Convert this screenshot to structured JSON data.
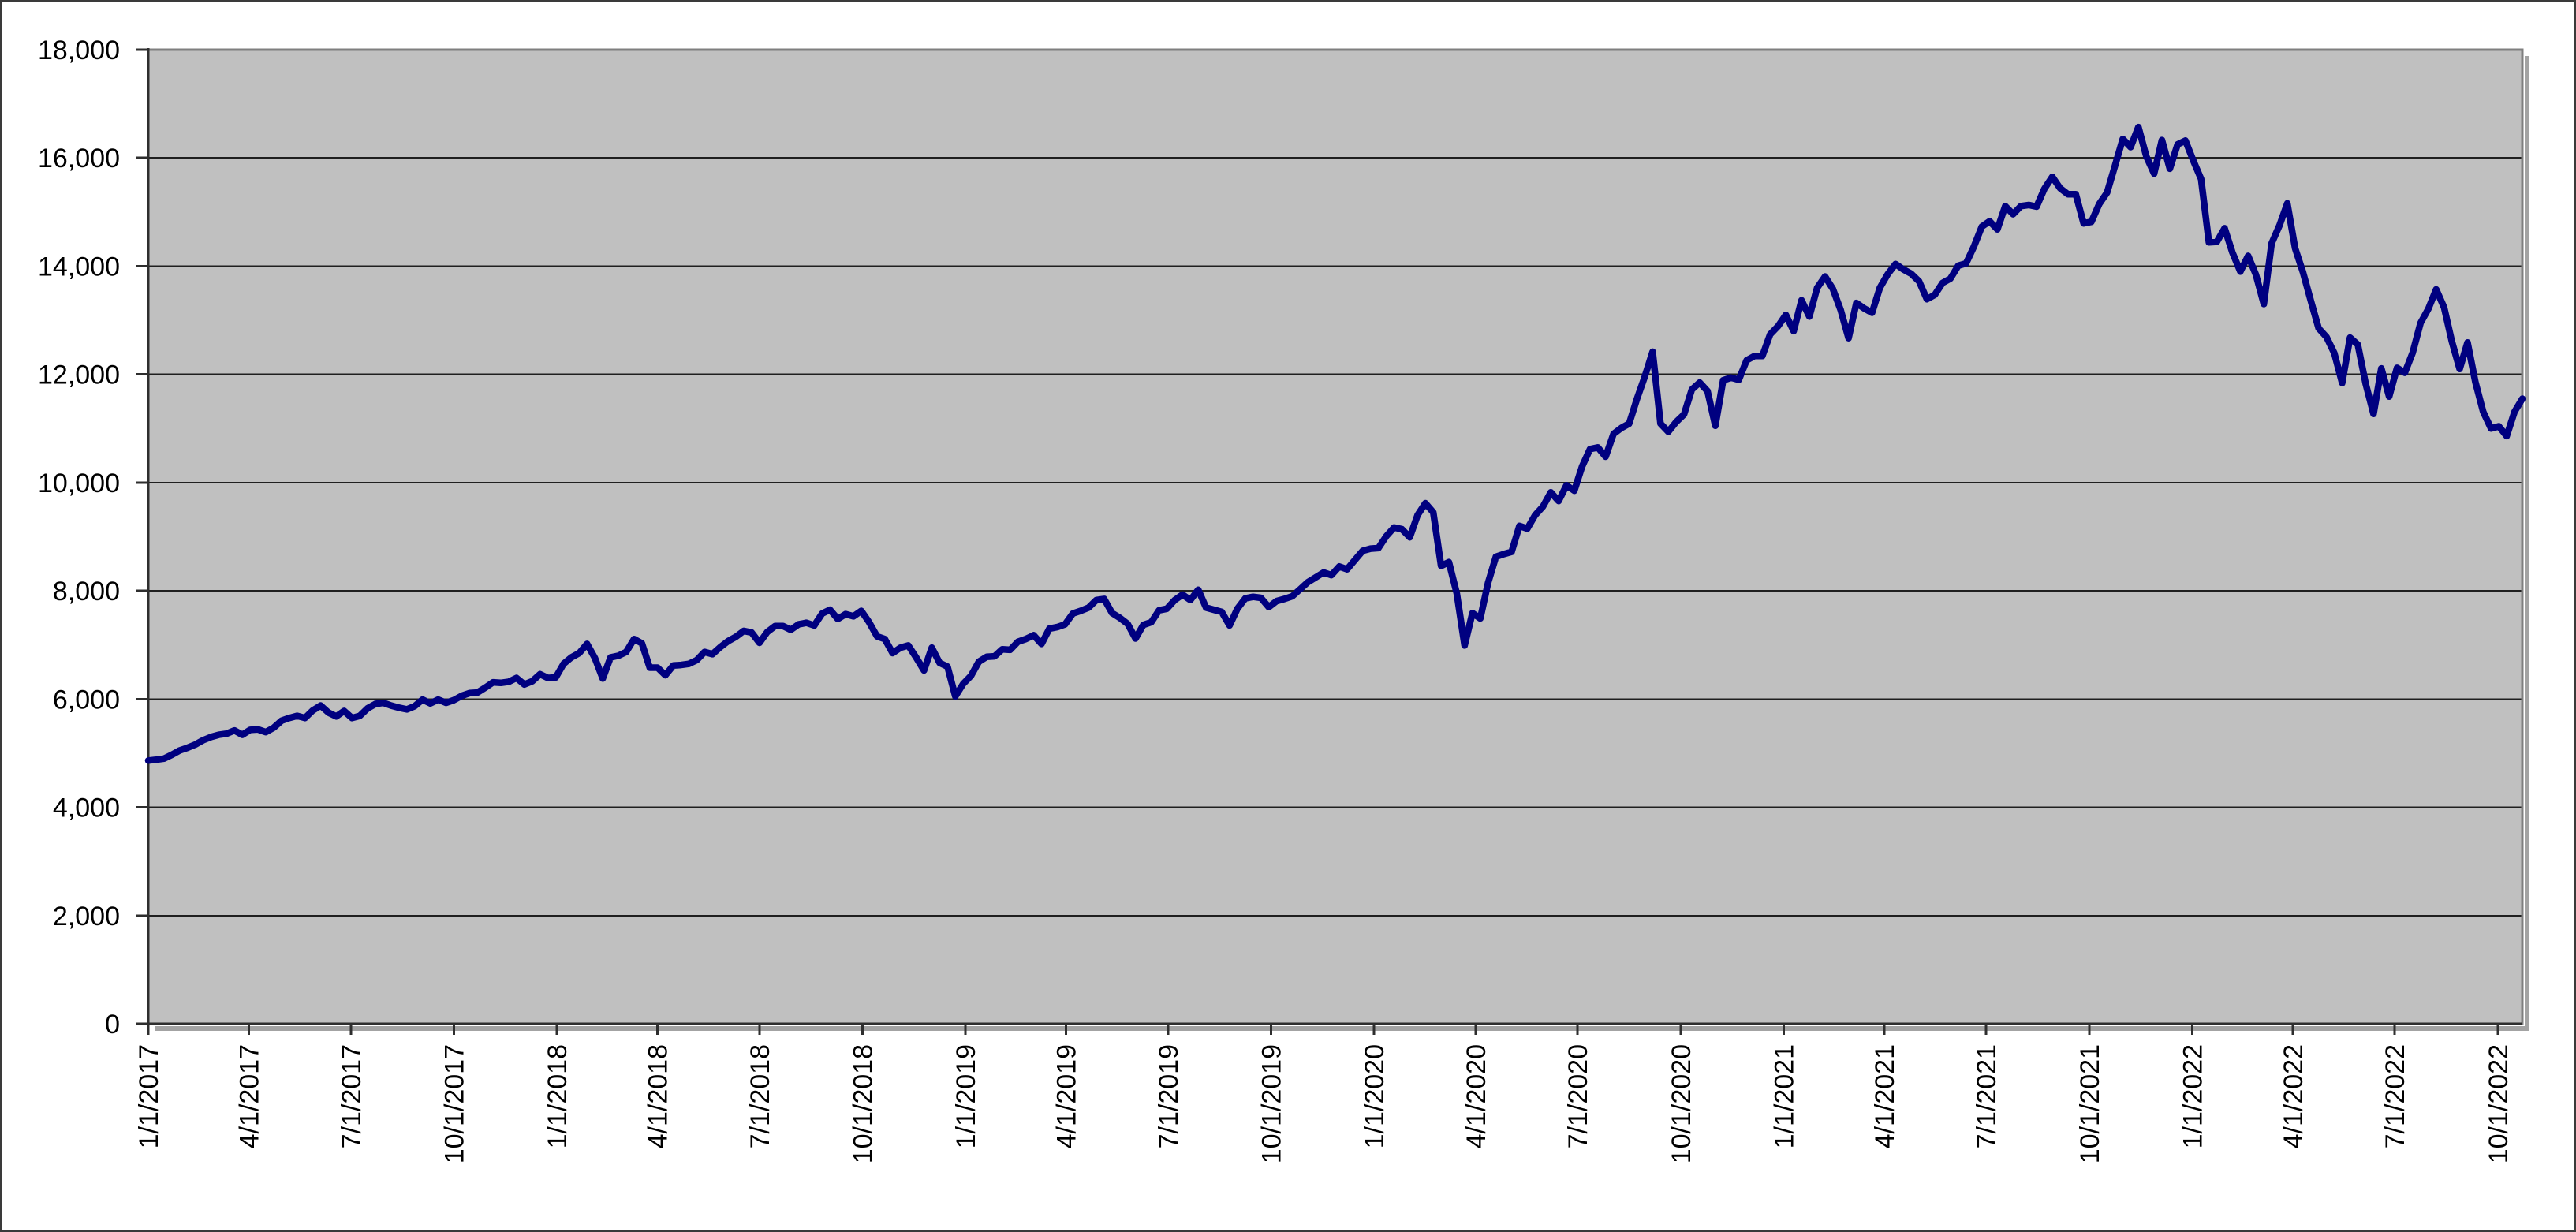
{
  "chart_data": {
    "type": "line",
    "title": "",
    "legend": "none",
    "grid": true,
    "plot_bg_color": "#c0c0c0",
    "gridline_color": "#1f1f1f",
    "plot_border_color": "#7f7f7f",
    "axis_color": "#2e2e2e",
    "x": {
      "start": "1/1/2017",
      "end": "10/23/2022",
      "interval": "weekly",
      "tick_labels": [
        "1/1/2017",
        "4/1/2017",
        "7/1/2017",
        "10/1/2017",
        "1/1/2018",
        "4/1/2018",
        "7/1/2018",
        "10/1/2018",
        "1/1/2019",
        "4/1/2019",
        "7/1/2019",
        "10/1/2019",
        "1/1/2020",
        "4/1/2020",
        "7/1/2020",
        "10/1/2020",
        "1/1/2021",
        "4/1/2021",
        "7/1/2021",
        "10/1/2021",
        "1/1/2022",
        "4/1/2022",
        "7/1/2022",
        "10/1/2022"
      ]
    },
    "y": {
      "min": 0,
      "max": 18000,
      "tick_step": 2000,
      "tick_labels": [
        "0",
        "2,000",
        "4,000",
        "6,000",
        "8,000",
        "10,000",
        "12,000",
        "14,000",
        "16,000",
        "18,000"
      ]
    },
    "series": [
      {
        "color": "#000080",
        "values": [
          4863,
          4880,
          4900,
          4970,
          5050,
          5100,
          5160,
          5240,
          5300,
          5340,
          5360,
          5420,
          5340,
          5430,
          5440,
          5390,
          5470,
          5600,
          5650,
          5690,
          5650,
          5790,
          5880,
          5750,
          5680,
          5780,
          5650,
          5690,
          5830,
          5910,
          5930,
          5880,
          5840,
          5810,
          5870,
          5990,
          5920,
          5990,
          5930,
          5980,
          6060,
          6110,
          6120,
          6210,
          6310,
          6300,
          6320,
          6390,
          6270,
          6330,
          6460,
          6390,
          6400,
          6650,
          6770,
          6850,
          7020,
          6760,
          6380,
          6770,
          6800,
          6870,
          7110,
          7030,
          6580,
          6580,
          6440,
          6620,
          6630,
          6650,
          6720,
          6870,
          6830,
          6960,
          7070,
          7150,
          7260,
          7230,
          7040,
          7240,
          7350,
          7350,
          7280,
          7380,
          7410,
          7360,
          7580,
          7650,
          7480,
          7570,
          7530,
          7630,
          7420,
          7160,
          7110,
          6850,
          6950,
          6990,
          6770,
          6530,
          6950,
          6670,
          6600,
          6050,
          6280,
          6430,
          6690,
          6780,
          6790,
          6920,
          6910,
          7060,
          7110,
          7180,
          7020,
          7300,
          7330,
          7380,
          7580,
          7630,
          7690,
          7830,
          7850,
          7590,
          7500,
          7390,
          7120,
          7370,
          7420,
          7640,
          7670,
          7830,
          7930,
          7830,
          8020,
          7690,
          7650,
          7610,
          7360,
          7670,
          7860,
          7890,
          7870,
          7700,
          7810,
          7850,
          7900,
          8030,
          8160,
          8250,
          8340,
          8290,
          8450,
          8400,
          8570,
          8740,
          8780,
          8790,
          9010,
          9170,
          9140,
          8990,
          9400,
          9620,
          9450,
          8460,
          8530,
          7950,
          6990,
          7590,
          7490,
          8150,
          8630,
          8680,
          8720,
          9200,
          9150,
          9400,
          9560,
          9820,
          9660,
          9950,
          9850,
          10300,
          10620,
          10650,
          10480,
          10900,
          11010,
          11090,
          11550,
          11960,
          12420,
          11090,
          10940,
          11120,
          11260,
          11720,
          11850,
          11690,
          11050,
          11890,
          11940,
          11900,
          12260,
          12340,
          12340,
          12740,
          12890,
          13100,
          12800,
          13370,
          13070,
          13600,
          13810,
          13580,
          13190,
          12670,
          13320,
          13220,
          13140,
          13600,
          13850,
          14040,
          13940,
          13860,
          13720,
          13390,
          13470,
          13690,
          13770,
          14010,
          14050,
          14360,
          14730,
          14830,
          14680,
          15110,
          14960,
          15110,
          15130,
          15100,
          15430,
          15650,
          15440,
          15330,
          15330,
          14790,
          14820,
          15150,
          15360,
          15850,
          16350,
          16200,
          16570,
          16030,
          15710,
          16330,
          15800,
          16250,
          16320,
          15950,
          15610,
          14440,
          14450,
          14700,
          14250,
          13900,
          14190,
          13840,
          13300,
          14420,
          14750,
          15160,
          14330,
          13890,
          13360,
          12850,
          12690,
          12390,
          11840,
          12680,
          12550,
          11830,
          11270,
          12110,
          11590,
          12120,
          12030,
          12400,
          12950,
          13210,
          13570,
          13240,
          12610,
          12100,
          12590,
          11860,
          11310,
          11000,
          11040,
          10860,
          11310,
          11550
        ]
      }
    ]
  }
}
